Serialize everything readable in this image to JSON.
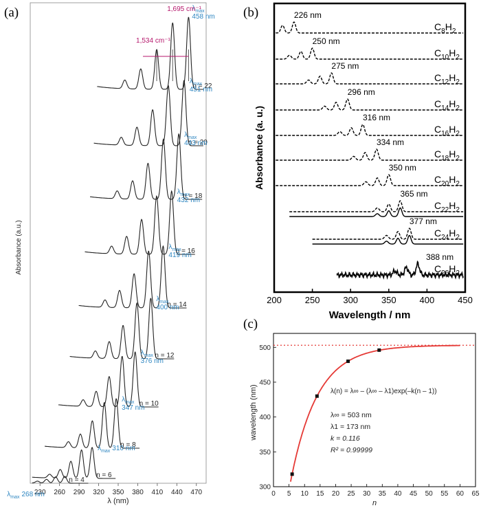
{
  "panels": {
    "a": "(a)",
    "b": "(b)",
    "c": "(c)"
  },
  "chart_data": [
    {
      "type": "line",
      "panel": "(a)",
      "xlabel": "λ (nm)",
      "ylabel": "Absorbance (a.u.)",
      "xticks": [
        230,
        260,
        290,
        320,
        350,
        380,
        410,
        440,
        470
      ],
      "xlim": [
        215,
        485
      ],
      "annotation_cm1": [
        "1,534 cm⁻¹",
        "1,695 cm⁻¹"
      ],
      "series": [
        {
          "n": "n = 22",
          "lambda_max_text": "458 nm",
          "lambda_max": 458
        },
        {
          "n": "n = 20",
          "lambda_max_text": "451 nm",
          "lambda_max": 451
        },
        {
          "n": "n = 18",
          "lambda_max_text": "443 nm",
          "lambda_max": 443
        },
        {
          "n": "n = 16",
          "lambda_max_text": "432 nm",
          "lambda_max": 432
        },
        {
          "n": "n = 14",
          "lambda_max_text": "419 nm",
          "lambda_max": 419
        },
        {
          "n": "n = 12",
          "lambda_max_text": "400 nm",
          "lambda_max": 400
        },
        {
          "n": "n = 10",
          "lambda_max_text": "376 nm",
          "lambda_max": 376
        },
        {
          "n": "n = 8",
          "lambda_max_text": "347 nm",
          "lambda_max": 347
        },
        {
          "n": "n = 6",
          "lambda_max_text": "310 nm",
          "lambda_max": 310
        },
        {
          "n": "n = 4",
          "lambda_max_text": "268 nm",
          "lambda_max": 268
        }
      ],
      "lambda_label": "λ",
      "max_sub": "max"
    },
    {
      "type": "line",
      "panel": "(b)",
      "xlabel": "Wavelength / nm",
      "ylabel": "Absorbance (a. u.)",
      "xticks": [
        200,
        250,
        300,
        350,
        400,
        450
      ],
      "xlim": [
        200,
        450
      ],
      "series": [
        {
          "name": "C8H2",
          "sub": "8",
          "peak_label": "226 nm",
          "peak": 226
        },
        {
          "name": "C10H2",
          "sub": "10",
          "peak_label": "250 nm",
          "peak": 250
        },
        {
          "name": "C12H2",
          "sub": "12",
          "peak_label": "275 nm",
          "peak": 275
        },
        {
          "name": "C14H2",
          "sub": "14",
          "peak_label": "296 nm",
          "peak": 296
        },
        {
          "name": "C16H2",
          "sub": "16",
          "peak_label": "316 nm",
          "peak": 316
        },
        {
          "name": "C18H2",
          "sub": "18",
          "peak_label": "334 nm",
          "peak": 334
        },
        {
          "name": "C20H2",
          "sub": "20",
          "peak_label": "350 nm",
          "peak": 350
        },
        {
          "name": "C22H2",
          "sub": "22",
          "peak_label": "365 nm",
          "peak": 365
        },
        {
          "name": "C24H2",
          "sub": "24",
          "peak_label": "377 nm",
          "peak": 377
        },
        {
          "name": "C26H2",
          "sub": "26",
          "peak_label": "388 nm",
          "peak": 388
        }
      ]
    },
    {
      "type": "scatter",
      "panel": "(c)",
      "xlabel": "n",
      "ylabel": "wavelength (nm)",
      "xlim": [
        0,
        65
      ],
      "ylim": [
        300,
        520
      ],
      "xticks": [
        0,
        5,
        10,
        15,
        20,
        25,
        30,
        35,
        40,
        45,
        50,
        55,
        60,
        65
      ],
      "yticks": [
        300,
        350,
        400,
        450,
        500
      ],
      "points": [
        {
          "x": 6,
          "y": 318
        },
        {
          "x": 14,
          "y": 430
        },
        {
          "x": 24,
          "y": 480
        },
        {
          "x": 34,
          "y": 496
        }
      ],
      "fit": {
        "lambda_inf": 503,
        "lambda_1": 173,
        "k": 0.116,
        "x_from": 5.5,
        "x_to": 60
      },
      "asymptote": 503,
      "equation": "λ(n) = λ∞ – (λ∞ – λ1)exp(–k(n – 1))",
      "params": [
        "λ∞ = 503 nm",
        "λ1 = 173 nm",
        "k = 0.116",
        "R² = 0.99999"
      ]
    }
  ]
}
